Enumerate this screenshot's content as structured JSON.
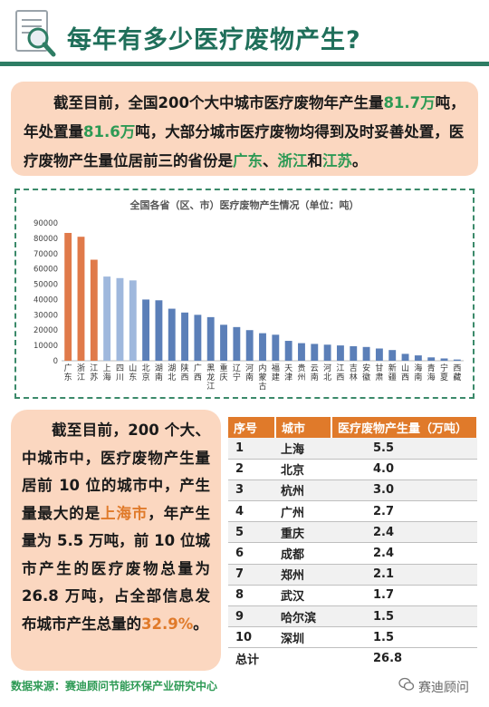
{
  "header": {
    "title": "每年有多少医疗废物产生?",
    "icon": "document-search-icon"
  },
  "intro": {
    "p1": "截至目前，全国200个大中城市医疗废物年产生量",
    "v1": "81.7万",
    "p2": "吨，年处置量",
    "v2": "81.6万",
    "p3": "吨，大部分城市医疗废物均得到及时妥善处置，医疗废物产生量位居前三的省份是",
    "prov1": "广东",
    "sep1": "、",
    "prov2": "浙江",
    "sep2": "和",
    "prov3": "江苏",
    "end": "。"
  },
  "chart_data": {
    "type": "bar",
    "title": "全国各省（区、市）医疗废物产生情况（单位：吨）",
    "categories": [
      "广东",
      "浙江",
      "江苏",
      "上海",
      "四川",
      "山东",
      "北京",
      "湖南",
      "湖北",
      "陕西",
      "广西",
      "黑龙江",
      "重庆",
      "辽宁",
      "河南",
      "内蒙古",
      "福建",
      "天津",
      "贵州",
      "云南",
      "河北",
      "江西",
      "吉林",
      "安徽",
      "甘肃",
      "新疆",
      "山西",
      "海南",
      "青海",
      "宁夏",
      "西藏"
    ],
    "values": [
      83500,
      81000,
      66000,
      55000,
      54000,
      52500,
      40000,
      39500,
      34000,
      31500,
      30000,
      28500,
      23500,
      22000,
      20000,
      18000,
      17000,
      13000,
      11500,
      11000,
      10500,
      10000,
      9500,
      9000,
      8000,
      7000,
      4500,
      3500,
      2200,
      1500,
      800
    ],
    "ylim": [
      0,
      90000
    ],
    "yticks": [
      0,
      10000,
      20000,
      30000,
      40000,
      50000,
      60000,
      70000,
      80000,
      90000
    ],
    "colors": {
      "top": "#e07a4a",
      "mid": "#9fb8dd",
      "rest": "#5b7fb8"
    },
    "grid": false,
    "legend": "none"
  },
  "summary": {
    "p1": "截至目前，200 个大、中城市中，医疗废物产生量居前 10 位的城市中，产生量最大的是",
    "city": "上海市",
    "p2": "，年产生量为 5.5 万吨，前 10 位城市产生的医疗废物总量为26.8 万吨，占全部信息发布城市产生总量的",
    "pct": "32.9%",
    "end": "。"
  },
  "table": {
    "headers": [
      "序号",
      "城市",
      "医疗废物产生量（万吨）"
    ],
    "rows": [
      {
        "rank": "1",
        "city": "上海",
        "value": "5.5"
      },
      {
        "rank": "2",
        "city": "北京",
        "value": "4.0"
      },
      {
        "rank": "3",
        "city": "杭州",
        "value": "3.0"
      },
      {
        "rank": "4",
        "city": "广州",
        "value": "2.7"
      },
      {
        "rank": "5",
        "city": "重庆",
        "value": "2.4"
      },
      {
        "rank": "6",
        "city": "成都",
        "value": "2.4"
      },
      {
        "rank": "7",
        "city": "郑州",
        "value": "2.1"
      },
      {
        "rank": "8",
        "city": "武汉",
        "value": "1.7"
      },
      {
        "rank": "9",
        "city": "哈尔滨",
        "value": "1.5"
      },
      {
        "rank": "10",
        "city": "深圳",
        "value": "1.5"
      }
    ],
    "total_label": "总计",
    "total_value": "26.8"
  },
  "footer": {
    "source": "数据来源：赛迪顾问节能环保产业研究中心",
    "brand": "赛迪顾问",
    "brand_icon": "wechat-icon"
  }
}
